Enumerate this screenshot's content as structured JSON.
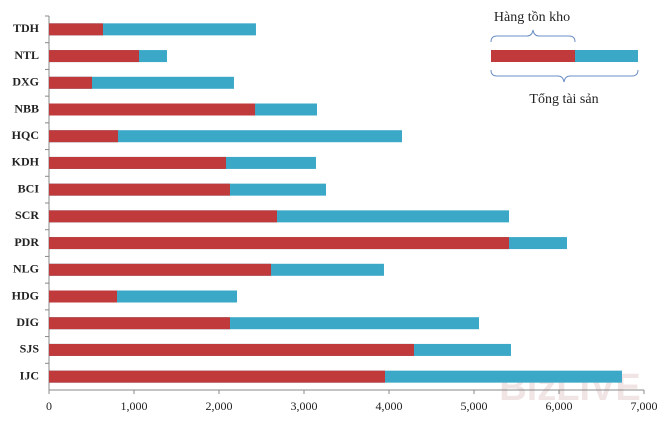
{
  "chart_data": {
    "type": "bar",
    "orientation": "horizontal",
    "categories": [
      "TDH",
      "NTL",
      "DXG",
      "NBB",
      "HQC",
      "KDH",
      "BCI",
      "SCR",
      "PDR",
      "NLG",
      "HDG",
      "DIG",
      "SJS",
      "IJC"
    ],
    "series": [
      {
        "name": "Tổng tài sản",
        "color": "#3ba8c8",
        "values": [
          2435,
          1388,
          2176,
          3153,
          4153,
          3141,
          3259,
          5412,
          6094,
          3941,
          2212,
          5059,
          5435,
          6741
        ]
      },
      {
        "name": "Hàng tồn kho",
        "color": "#c0393b",
        "values": [
          635,
          1059,
          506,
          2424,
          812,
          2082,
          2129,
          2682,
          5412,
          2612,
          800,
          2129,
          4294,
          3953
        ]
      }
    ],
    "overlap": true,
    "xlim": [
      0,
      7000
    ],
    "xticks": [
      0,
      {
        "value": 1000,
        "label": "1,000"
      },
      {
        "value": 2000,
        "label": "2,000"
      },
      {
        "value": 3000,
        "label": "3,000"
      },
      {
        "value": 4000,
        "label": "4,000"
      },
      {
        "value": 5000,
        "label": "5,000"
      },
      {
        "value": 6000,
        "label": "6,000"
      },
      {
        "value": 7000,
        "label": "7,000"
      }
    ],
    "grid": false,
    "legend": "top-right",
    "watermark": "BizLIVE"
  }
}
